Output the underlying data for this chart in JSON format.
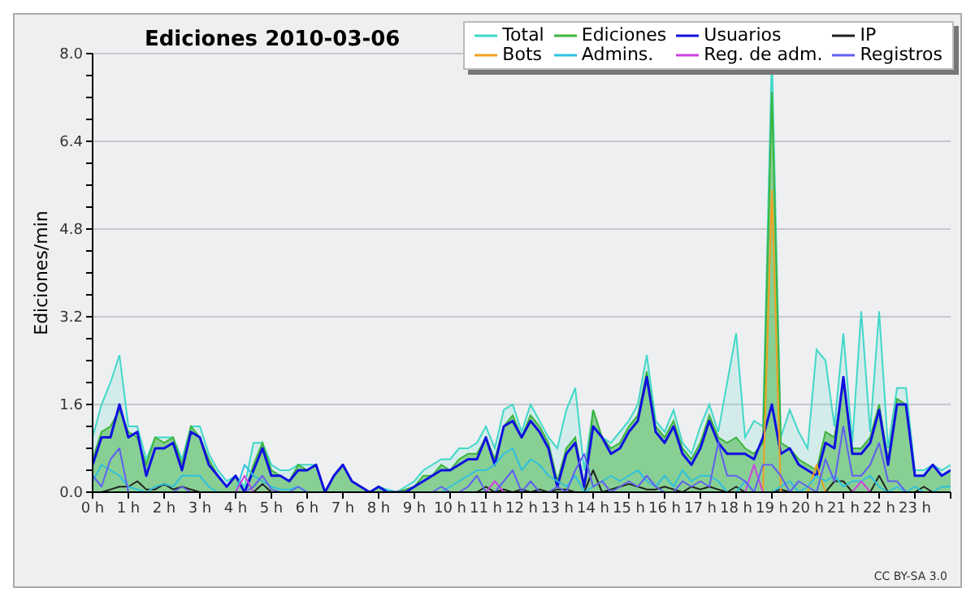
{
  "chart_data": {
    "type": "line",
    "title": "Ediciones  2010-03-06",
    "ylabel": "Ediciones/min",
    "annotations": [
      "CC BY-SA 3.0"
    ],
    "x": [
      0,
      0.25,
      0.5,
      0.75,
      1,
      1.25,
      1.5,
      1.75,
      2,
      2.25,
      2.5,
      2.75,
      3,
      3.25,
      3.5,
      3.75,
      4,
      4.25,
      4.5,
      4.75,
      5,
      5.25,
      5.5,
      5.75,
      6,
      6.25,
      6.5,
      6.75,
      7,
      7.25,
      7.5,
      7.75,
      8,
      8.25,
      8.5,
      8.75,
      9,
      9.25,
      9.5,
      9.75,
      10,
      10.25,
      10.5,
      10.75,
      11,
      11.25,
      11.5,
      11.75,
      12,
      12.25,
      12.5,
      12.75,
      13,
      13.25,
      13.5,
      13.75,
      14,
      14.25,
      14.5,
      14.75,
      15,
      15.25,
      15.5,
      15.75,
      16,
      16.25,
      16.5,
      16.75,
      17,
      17.25,
      17.5,
      17.75,
      18,
      18.25,
      18.5,
      18.75,
      19,
      19.25,
      19.5,
      19.75,
      20,
      20.25,
      20.5,
      20.75,
      21,
      21.25,
      21.5,
      21.75,
      22,
      22.25,
      22.5,
      22.75,
      23,
      23.25,
      23.5,
      23.75,
      24
    ],
    "series": [
      {
        "name": "Total",
        "type": "area",
        "color": "#40d8c8",
        "values": [
          1.0,
          1.6,
          2.0,
          2.5,
          1.2,
          1.2,
          0.6,
          1.0,
          1.0,
          1.0,
          0.6,
          1.2,
          1.2,
          0.7,
          0.4,
          0.2,
          0.3,
          0.1,
          0.9,
          0.9,
          0.5,
          0.4,
          0.4,
          0.5,
          0.5,
          0.5,
          0,
          0.3,
          0.5,
          0.2,
          0.1,
          0,
          0.1,
          0.05,
          0,
          0.1,
          0.2,
          0.4,
          0.5,
          0.6,
          0.6,
          0.8,
          0.8,
          0.9,
          1.2,
          0.8,
          1.5,
          1.6,
          1.1,
          1.6,
          1.3,
          1.0,
          0.8,
          1.5,
          1.9,
          0.4,
          1.5,
          1.0,
          0.9,
          1.1,
          1.3,
          1.6,
          2.5,
          1.3,
          1.1,
          1.5,
          0.9,
          0.7,
          1.2,
          1.6,
          1.1,
          2.0,
          2.9,
          1.0,
          1.3,
          1.2,
          8.0,
          1.0,
          1.5,
          1.1,
          0.8,
          2.6,
          2.4,
          1.2,
          2.9,
          0.9,
          3.3,
          1.1,
          3.3,
          0.8,
          1.9,
          1.9,
          0.4,
          0.4,
          0.5,
          0.4,
          0.5
        ]
      },
      {
        "name": "Ediciones",
        "type": "area",
        "color": "#3cb43c",
        "values": [
          0.6,
          1.1,
          1.2,
          1.5,
          1.1,
          1.0,
          0.5,
          1.0,
          0.9,
          1.0,
          0.5,
          1.2,
          1.0,
          0.6,
          0.3,
          0.1,
          0.3,
          0,
          0.5,
          0.9,
          0.4,
          0.3,
          0.2,
          0.5,
          0.4,
          0.5,
          0,
          0.3,
          0.5,
          0.2,
          0.1,
          0,
          0.1,
          0,
          0,
          0.05,
          0.1,
          0.3,
          0.3,
          0.5,
          0.4,
          0.6,
          0.7,
          0.7,
          1.0,
          0.6,
          1.2,
          1.4,
          1.0,
          1.4,
          1.2,
          0.9,
          0.2,
          0.8,
          1.0,
          0.1,
          1.5,
          1.0,
          0.8,
          0.9,
          1.2,
          1.4,
          2.2,
          1.2,
          1.0,
          1.3,
          0.8,
          0.6,
          0.9,
          1.4,
          1.0,
          0.9,
          1.0,
          0.8,
          0.7,
          0.9,
          7.3,
          0.9,
          0.8,
          0.6,
          0.5,
          0.4,
          1.1,
          1.0,
          2.0,
          0.8,
          0.8,
          1.0,
          1.6,
          0.6,
          1.7,
          1.6,
          0.3,
          0.3,
          0.5,
          0.3,
          0.4
        ]
      },
      {
        "name": "Usuarios",
        "color": "#1010e0",
        "values": [
          0.5,
          1.0,
          1.0,
          1.6,
          1.0,
          1.1,
          0.3,
          0.8,
          0.8,
          0.9,
          0.4,
          1.1,
          1.0,
          0.5,
          0.3,
          0.1,
          0.3,
          0,
          0.4,
          0.8,
          0.3,
          0.3,
          0.2,
          0.4,
          0.4,
          0.5,
          0,
          0.3,
          0.5,
          0.2,
          0.1,
          0,
          0.1,
          0,
          0,
          0,
          0.1,
          0.2,
          0.3,
          0.4,
          0.4,
          0.5,
          0.6,
          0.6,
          1.0,
          0.5,
          1.2,
          1.3,
          1.0,
          1.3,
          1.1,
          0.8,
          0.1,
          0.7,
          0.9,
          0.1,
          1.2,
          1.0,
          0.7,
          0.8,
          1.1,
          1.3,
          2.1,
          1.1,
          0.9,
          1.2,
          0.7,
          0.5,
          0.8,
          1.3,
          0.9,
          0.7,
          0.7,
          0.7,
          0.6,
          1.0,
          1.6,
          0.7,
          0.8,
          0.5,
          0.4,
          0.3,
          0.9,
          0.8,
          2.1,
          0.7,
          0.7,
          0.9,
          1.5,
          0.5,
          1.6,
          1.6,
          0.3,
          0.3,
          0.5,
          0.3,
          0.4
        ]
      },
      {
        "name": "IP",
        "color": "#202020",
        "values": [
          0,
          0,
          0.05,
          0.1,
          0.1,
          0.2,
          0.05,
          0.05,
          0.15,
          0.05,
          0.1,
          0.05,
          0,
          0,
          0,
          0,
          0,
          0,
          0,
          0.15,
          0,
          0,
          0,
          0,
          0,
          0,
          0,
          0,
          0,
          0,
          0,
          0,
          0,
          0,
          0,
          0,
          0,
          0,
          0,
          0,
          0,
          0,
          0,
          0,
          0.1,
          0,
          0.05,
          0,
          0.05,
          0,
          0.05,
          0,
          0.05,
          0.05,
          0,
          0,
          0.4,
          0,
          0.05,
          0.1,
          0.15,
          0.1,
          0.05,
          0.05,
          0.1,
          0.05,
          0,
          0.1,
          0.05,
          0.1,
          0.05,
          0,
          0.1,
          0,
          0,
          0,
          0,
          0.05,
          0,
          0,
          0,
          0,
          0,
          0.2,
          0.2,
          0,
          0,
          0,
          0.3,
          0,
          0,
          0,
          0,
          0.1,
          0,
          0,
          0
        ]
      },
      {
        "name": "Bots",
        "color": "#f0a020",
        "values": [
          null,
          null,
          null,
          null,
          null,
          null,
          null,
          null,
          null,
          null,
          null,
          null,
          null,
          null,
          null,
          null,
          null,
          null,
          null,
          null,
          null,
          null,
          null,
          null,
          null,
          null,
          null,
          null,
          null,
          null,
          null,
          null,
          null,
          null,
          null,
          null,
          null,
          null,
          null,
          null,
          null,
          null,
          null,
          null,
          null,
          null,
          null,
          null,
          null,
          null,
          null,
          null,
          null,
          null,
          null,
          null,
          null,
          null,
          null,
          null,
          null,
          null,
          null,
          null,
          null,
          null,
          null,
          null,
          null,
          null,
          null,
          null,
          null,
          null,
          null,
          0,
          5.5,
          0,
          null,
          null,
          0,
          0.5,
          0,
          null,
          null,
          null,
          null,
          null,
          null,
          null,
          null,
          null,
          null,
          null,
          null,
          null,
          null
        ]
      },
      {
        "name": "Admins.",
        "color": "#30c0e0",
        "values": [
          0.2,
          0.5,
          0.4,
          0.3,
          0.1,
          0.05,
          0,
          0.1,
          0.15,
          0.1,
          0.3,
          0.3,
          0.3,
          0.1,
          0,
          0,
          0,
          0.5,
          0.3,
          0.2,
          0.1,
          0.05,
          0.05,
          0.1,
          0,
          0,
          0,
          0,
          0,
          0,
          0,
          0,
          0,
          0,
          0,
          0,
          0,
          0,
          0,
          0,
          0.1,
          0.2,
          0.3,
          0.4,
          0.4,
          0.5,
          0.7,
          0.8,
          0.4,
          0.6,
          0.5,
          0.3,
          0.2,
          0.1,
          0.3,
          0,
          0.1,
          0.2,
          0.3,
          0.2,
          0.3,
          0.4,
          0.2,
          0.1,
          0.3,
          0.1,
          0.4,
          0.2,
          0.3,
          0.3,
          0.2,
          0,
          0,
          0.2,
          0,
          0,
          0,
          0.1,
          0.2,
          0,
          0.1,
          0.3,
          0.2,
          0.3,
          0.1,
          0.2,
          0.2,
          0.3,
          0.1,
          0,
          0.1,
          0,
          0.1,
          0,
          0,
          0.1,
          0.1
        ]
      },
      {
        "name": "Reg. de adm.",
        "color": "#d040e0",
        "values": [
          null,
          null,
          null,
          null,
          null,
          null,
          null,
          null,
          null,
          null,
          null,
          null,
          null,
          null,
          null,
          null,
          0,
          0.3,
          0,
          null,
          null,
          null,
          null,
          null,
          null,
          null,
          null,
          null,
          null,
          null,
          null,
          null,
          null,
          null,
          null,
          null,
          null,
          null,
          null,
          null,
          null,
          null,
          null,
          null,
          0,
          0.2,
          0,
          null,
          null,
          null,
          null,
          null,
          null,
          null,
          null,
          null,
          null,
          null,
          null,
          null,
          null,
          null,
          null,
          null,
          null,
          null,
          null,
          null,
          null,
          null,
          null,
          null,
          null,
          0,
          0.5,
          0,
          null,
          null,
          null,
          null,
          null,
          null,
          null,
          null,
          null,
          0,
          0.2,
          0,
          null,
          null,
          null,
          null,
          null,
          null,
          null,
          null,
          null
        ]
      },
      {
        "name": "Registros",
        "color": "#6060f0",
        "values": [
          0.3,
          0.1,
          0.6,
          0.8,
          0,
          0,
          0,
          0,
          0,
          0,
          0.1,
          0,
          0,
          0,
          0,
          0,
          0,
          0,
          0.1,
          0.3,
          0.05,
          0,
          0,
          0.1,
          0,
          0,
          0,
          0,
          0,
          0,
          0,
          0,
          0,
          0,
          0,
          0,
          0,
          0,
          0,
          0.1,
          0,
          0,
          0.1,
          0.3,
          0,
          0,
          0.2,
          0.4,
          0,
          0.2,
          0,
          0,
          0.1,
          0,
          0.4,
          0.7,
          0.1,
          0.2,
          0,
          0.1,
          0.2,
          0.1,
          0.3,
          0.1,
          0,
          0,
          0.2,
          0.1,
          0.2,
          0.1,
          0.9,
          0.3,
          0.3,
          0.2,
          0,
          0.5,
          0.5,
          0.3,
          0,
          0.2,
          0.1,
          0,
          0.6,
          0.2,
          1.2,
          0.3,
          0.3,
          0.5,
          0.9,
          0.2,
          0.2,
          0,
          0,
          null,
          null,
          null,
          null
        ]
      }
    ],
    "xlim": [
      0,
      24
    ],
    "xticks": [
      {
        "value": 0,
        "label": "0 h"
      },
      {
        "value": 1,
        "label": "1 h"
      },
      {
        "value": 2,
        "label": "2 h"
      },
      {
        "value": 3,
        "label": "3 h"
      },
      {
        "value": 4,
        "label": "4 h"
      },
      {
        "value": 5,
        "label": "5 h"
      },
      {
        "value": 6,
        "label": "6 h"
      },
      {
        "value": 7,
        "label": "7 h"
      },
      {
        "value": 8,
        "label": "8 h"
      },
      {
        "value": 9,
        "label": "9 h"
      },
      {
        "value": 10,
        "label": "10 h"
      },
      {
        "value": 11,
        "label": "11 h"
      },
      {
        "value": 12,
        "label": "12 h"
      },
      {
        "value": 13,
        "label": "13 h"
      },
      {
        "value": 14,
        "label": "14 h"
      },
      {
        "value": 15,
        "label": "15 h"
      },
      {
        "value": 16,
        "label": "16 h"
      },
      {
        "value": 17,
        "label": "17 h"
      },
      {
        "value": 18,
        "label": "18 h"
      },
      {
        "value": 19,
        "label": "19 h"
      },
      {
        "value": 20,
        "label": "20 h"
      },
      {
        "value": 21,
        "label": "21 h"
      },
      {
        "value": 22,
        "label": "22 h"
      },
      {
        "value": 23,
        "label": "23 h"
      },
      {
        "value": 24,
        "label": null
      }
    ],
    "ylim": [
      0,
      8
    ],
    "yticks": [
      {
        "value": 0,
        "label": "0.0"
      },
      {
        "value": 0.4,
        "label": null
      },
      {
        "value": 0.8,
        "label": null
      },
      {
        "value": 1.2,
        "label": null
      },
      {
        "value": 1.6,
        "label": "1.6"
      },
      {
        "value": 2.0,
        "label": null
      },
      {
        "value": 2.4,
        "label": null
      },
      {
        "value": 2.8,
        "label": null
      },
      {
        "value": 3.2,
        "label": "3.2"
      },
      {
        "value": 3.6,
        "label": null
      },
      {
        "value": 4.0,
        "label": null
      },
      {
        "value": 4.4,
        "label": null
      },
      {
        "value": 4.8,
        "label": "4.8"
      },
      {
        "value": 5.2,
        "label": null
      },
      {
        "value": 5.6,
        "label": null
      },
      {
        "value": 6.0,
        "label": null
      },
      {
        "value": 6.4,
        "label": "6.4"
      },
      {
        "value": 6.8,
        "label": null
      },
      {
        "value": 7.2,
        "label": null
      },
      {
        "value": 7.6,
        "label": null
      },
      {
        "value": 8.0,
        "label": "8.0"
      }
    ],
    "grid": "y",
    "legend": "top right",
    "marker": "none",
    "line_style": "solid"
  }
}
